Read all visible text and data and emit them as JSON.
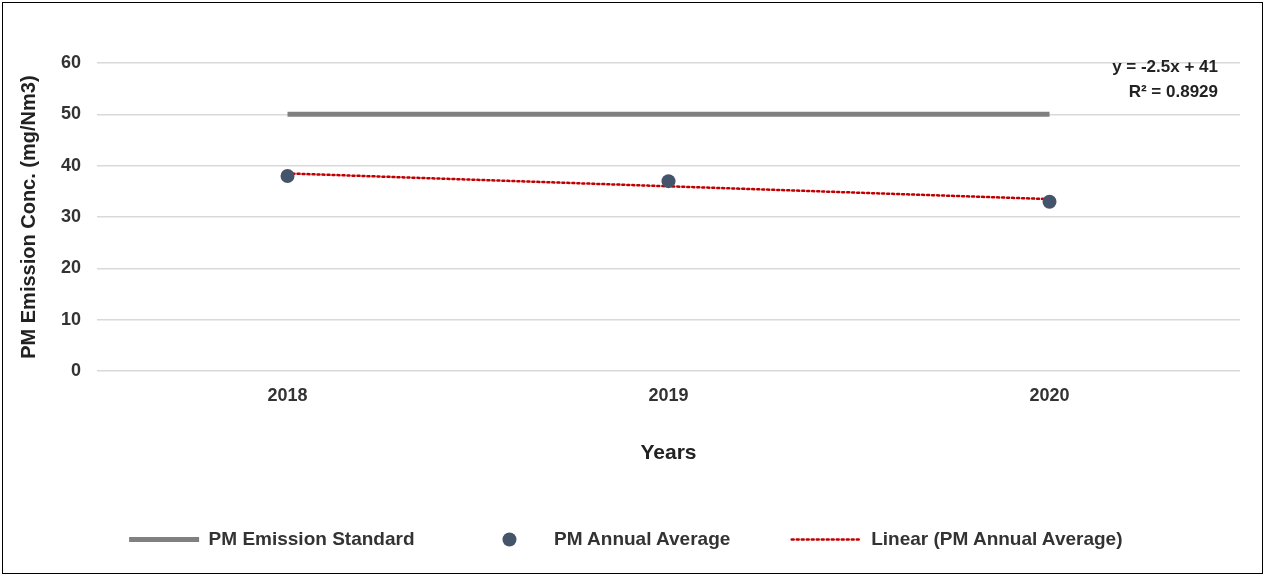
{
  "chart_data": {
    "type": "line",
    "xlabel": "Years",
    "ylabel": "PM Emission Conc. (mg/Nm3)",
    "categories": [
      "2018",
      "2019",
      "2020"
    ],
    "series": [
      {
        "name": "PM Emission Standard",
        "color": "#808080",
        "values": [
          50,
          50,
          50
        ],
        "marker": "none",
        "line_style": "solid"
      },
      {
        "type": "scatter",
        "name": "PM Annual Average",
        "color": "#44546a",
        "values": [
          38,
          37,
          33
        ],
        "marker": "circle"
      },
      {
        "name": "Linear (PM Annual Average)",
        "color": "#c00000",
        "values": [
          38.5,
          36,
          33.5
        ],
        "marker": "none",
        "line_style": "dotted"
      }
    ],
    "ylim": [
      0,
      60
    ],
    "yticks": [
      0,
      10,
      20,
      30,
      40,
      50,
      60
    ],
    "grid": "y",
    "legend": "bottom",
    "annotations": [
      "y = -2.5x + 41",
      "R² = 0.8929"
    ]
  }
}
